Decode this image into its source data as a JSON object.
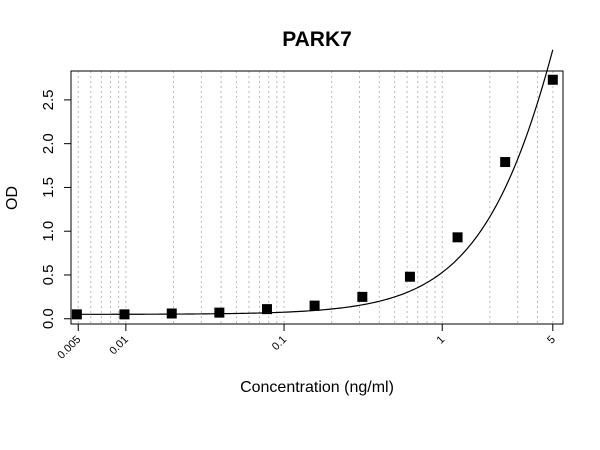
{
  "chart_data": {
    "type": "scatter",
    "title": "PARK7",
    "xlabel": "Concentration (ng/ml)",
    "ylabel": "OD",
    "x_scale": "log",
    "xlim": [
      0.0045,
      5.8
    ],
    "ylim": [
      -0.06,
      2.83
    ],
    "x_ticks": [
      0.005,
      0.01,
      0.1,
      1,
      5
    ],
    "x_tick_labels": [
      "0.005",
      "0.01",
      "0.1",
      "1",
      "5"
    ],
    "y_ticks": [
      0.0,
      0.5,
      1.0,
      1.5,
      2.0,
      2.5
    ],
    "y_tick_labels": [
      "0.0",
      "0.5",
      "1.0",
      "1.5",
      "2.0",
      "2.5"
    ],
    "grid": "vertical dotted lines at log decade minor positions",
    "grid_color": "#bbbbbb",
    "marker_color": "#000000",
    "series": [
      {
        "marker": "square",
        "x": [
          0.0049,
          0.0098,
          0.0195,
          0.039,
          0.078,
          0.156,
          0.3125,
          0.625,
          1.25,
          2.5,
          5.0
        ],
        "y": [
          0.05,
          0.05,
          0.06,
          0.07,
          0.11,
          0.15,
          0.25,
          0.48,
          0.93,
          1.79,
          2.73
        ]
      }
    ],
    "fit_curve": {
      "type": "4PL",
      "a": 0.05,
      "b": 1.3,
      "c": 11.5,
      "d": 12.0
    }
  }
}
